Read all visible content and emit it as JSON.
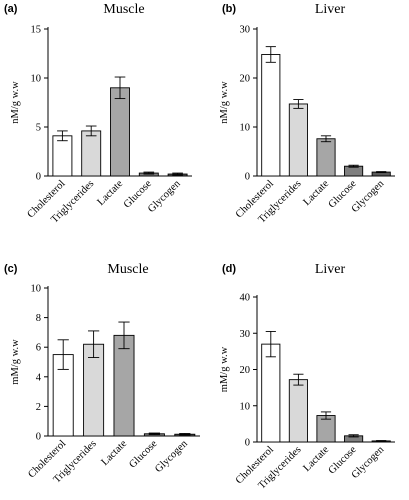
{
  "chart_data": [
    {
      "panel": "(a)",
      "type": "bar",
      "title": "Muscle",
      "ylabel": "nM/g w.w",
      "categories": [
        "Cholesterol",
        "Triglycerides",
        "Lactate",
        "Glucose",
        "Glycogen"
      ],
      "values": [
        4.1,
        4.6,
        9.0,
        0.3,
        0.2
      ],
      "errors": [
        0.5,
        0.5,
        1.1,
        0.1,
        0.1
      ],
      "colors": [
        "#ffffff",
        "#d9d9d9",
        "#a6a6a6",
        "#7f7f7f",
        "#595959"
      ],
      "ylim": [
        0,
        15
      ],
      "yticks": [
        0,
        5,
        10,
        15
      ]
    },
    {
      "panel": "(b)",
      "type": "bar",
      "title": "Liver",
      "ylabel": "nM/g w.w",
      "categories": [
        "Cholesterol",
        "Triglycerides",
        "Lactate",
        "Glucose",
        "Glycogen"
      ],
      "values": [
        24.8,
        14.7,
        7.6,
        2.0,
        0.8
      ],
      "errors": [
        1.6,
        0.9,
        0.6,
        0.2,
        0.1
      ],
      "colors": [
        "#ffffff",
        "#d9d9d9",
        "#a6a6a6",
        "#7f7f7f",
        "#595959"
      ],
      "ylim": [
        0,
        30
      ],
      "yticks": [
        0,
        10,
        20,
        30
      ]
    },
    {
      "panel": "(c)",
      "type": "bar",
      "title": "Muscle",
      "ylabel": "mM/g w.w",
      "categories": [
        "Cholesterol",
        "Triglycerides",
        "Lactate",
        "Glucose",
        "Glycogen"
      ],
      "values": [
        5.5,
        6.2,
        6.8,
        0.15,
        0.12
      ],
      "errors": [
        1.0,
        0.9,
        0.9,
        0.05,
        0.05
      ],
      "colors": [
        "#ffffff",
        "#d9d9d9",
        "#a6a6a6",
        "#7f7f7f",
        "#595959"
      ],
      "ylim": [
        0,
        10
      ],
      "yticks": [
        0,
        2,
        4,
        6,
        8,
        10
      ]
    },
    {
      "panel": "(d)",
      "type": "bar",
      "title": "Liver",
      "ylabel": "mM/g w.w",
      "categories": [
        "Cholesterol",
        "Triglycerides",
        "Lactate",
        "Glucose",
        "Glycogen"
      ],
      "values": [
        27.0,
        17.2,
        7.3,
        1.7,
        0.3
      ],
      "errors": [
        3.5,
        1.5,
        1.0,
        0.3,
        0.1
      ],
      "colors": [
        "#ffffff",
        "#d9d9d9",
        "#a6a6a6",
        "#7f7f7f",
        "#595959"
      ],
      "ylim": [
        0,
        40
      ],
      "yticks": [
        0,
        10,
        20,
        30,
        40
      ]
    }
  ]
}
